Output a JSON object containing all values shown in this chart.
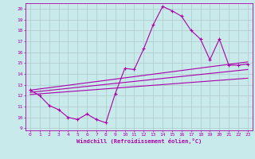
{
  "bg_color": "#c8eaea",
  "line_color": "#aa00aa",
  "grid_color": "#b0c8c8",
  "xlabel": "Windchill (Refroidissement éolien,°C)",
  "xlim": [
    -0.5,
    23.5
  ],
  "ylim": [
    8.8,
    20.5
  ],
  "yticks": [
    9,
    10,
    11,
    12,
    13,
    14,
    15,
    16,
    17,
    18,
    19,
    20
  ],
  "xticks": [
    0,
    1,
    2,
    3,
    4,
    5,
    6,
    7,
    8,
    9,
    10,
    11,
    12,
    13,
    14,
    15,
    16,
    17,
    18,
    19,
    20,
    21,
    22,
    23
  ],
  "line1_x": [
    0,
    1,
    2,
    3,
    4,
    5,
    6,
    7,
    8,
    9,
    10,
    11,
    12,
    13,
    14,
    15,
    16,
    17,
    18,
    19,
    20,
    21,
    22,
    23
  ],
  "line1_y": [
    12.5,
    12.0,
    11.1,
    10.7,
    10.0,
    9.8,
    10.3,
    9.8,
    9.5,
    12.2,
    14.5,
    14.4,
    16.3,
    18.5,
    20.2,
    19.8,
    19.3,
    18.0,
    17.2,
    15.3,
    17.2,
    14.8,
    14.8,
    14.9
  ],
  "line2_x": [
    0,
    23
  ],
  "line2_y": [
    12.3,
    14.4
  ],
  "line3_x": [
    0,
    23
  ],
  "line3_y": [
    12.5,
    15.1
  ],
  "line4_x": [
    0,
    23
  ],
  "line4_y": [
    12.1,
    13.6
  ]
}
